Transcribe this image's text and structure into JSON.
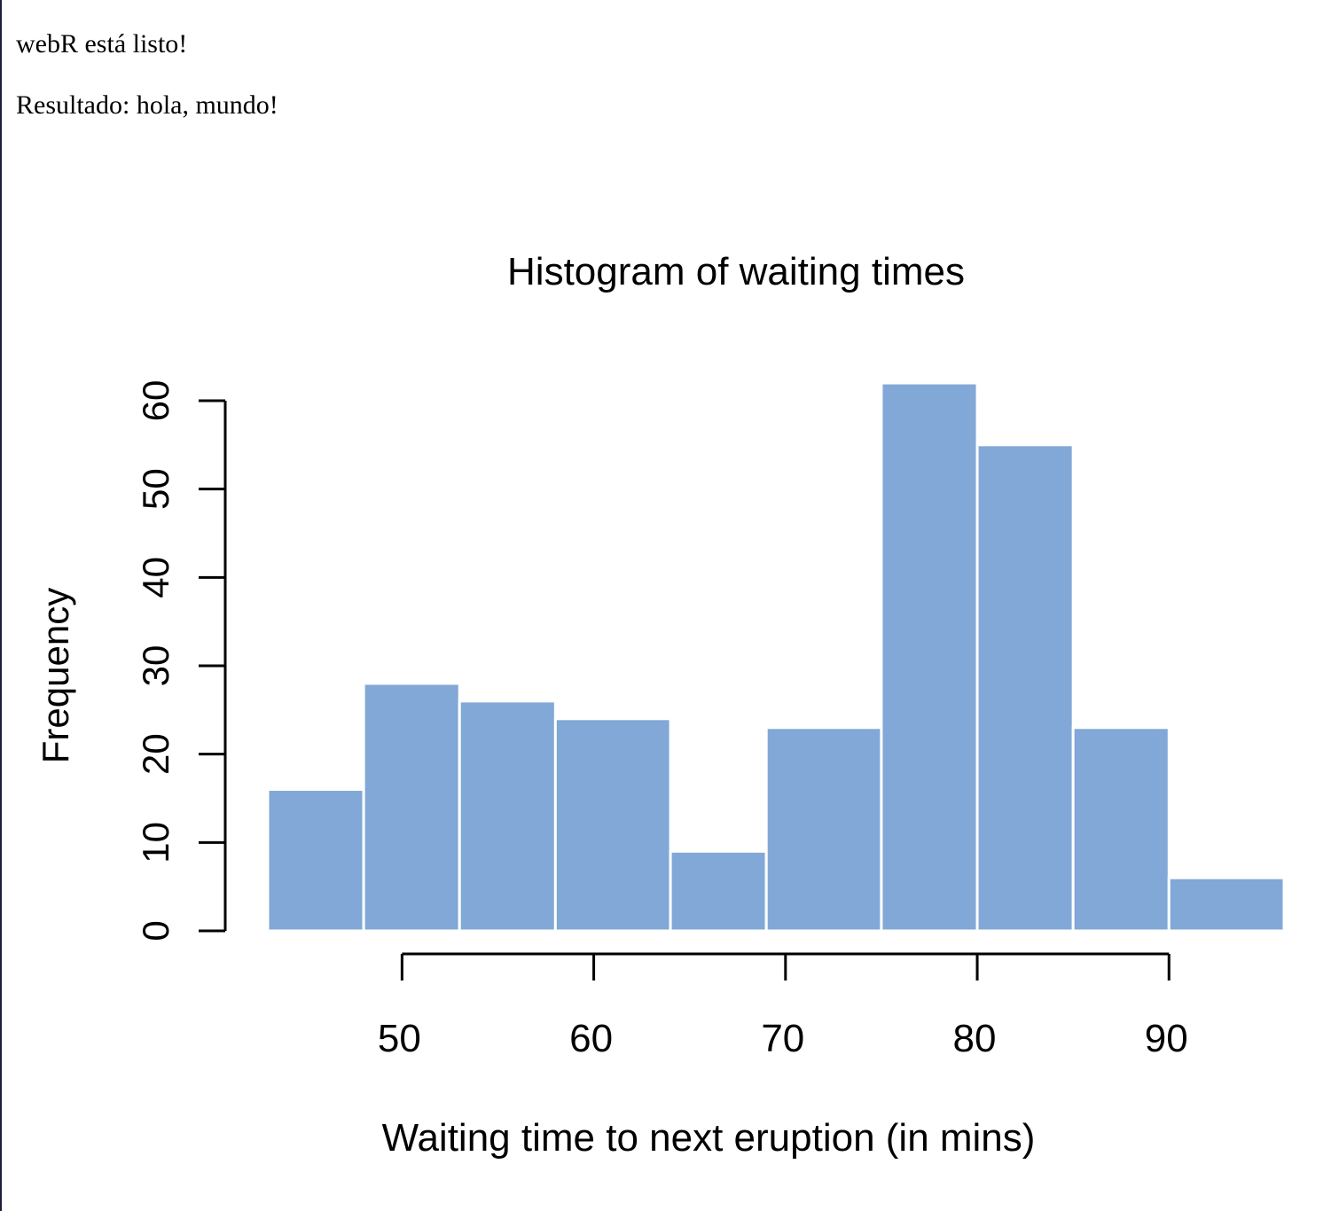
{
  "page": {
    "status": "webR está listo!",
    "result": "Resultado: hola, mundo!"
  },
  "chart_data": {
    "type": "bar",
    "title": "Histogram of waiting times",
    "xlabel": "Waiting time to next eruption (in mins)",
    "ylabel": "Frequency",
    "bins": [
      [
        43,
        48
      ],
      [
        48,
        53
      ],
      [
        53,
        58
      ],
      [
        58,
        64
      ],
      [
        64,
        69
      ],
      [
        69,
        75
      ],
      [
        75,
        80
      ],
      [
        80,
        85
      ],
      [
        85,
        90
      ],
      [
        90,
        96
      ]
    ],
    "values": [
      16,
      28,
      26,
      24,
      9,
      23,
      62,
      55,
      23,
      6
    ],
    "x_ticks": [
      "50",
      "60",
      "70",
      "80",
      "90"
    ],
    "y_ticks": [
      "0",
      "10",
      "20",
      "30",
      "40",
      "50",
      "60"
    ],
    "ylim": [
      0,
      62
    ],
    "grid": false,
    "bar_color": "#81a8d6",
    "bar_border_color": "#ffffff"
  }
}
